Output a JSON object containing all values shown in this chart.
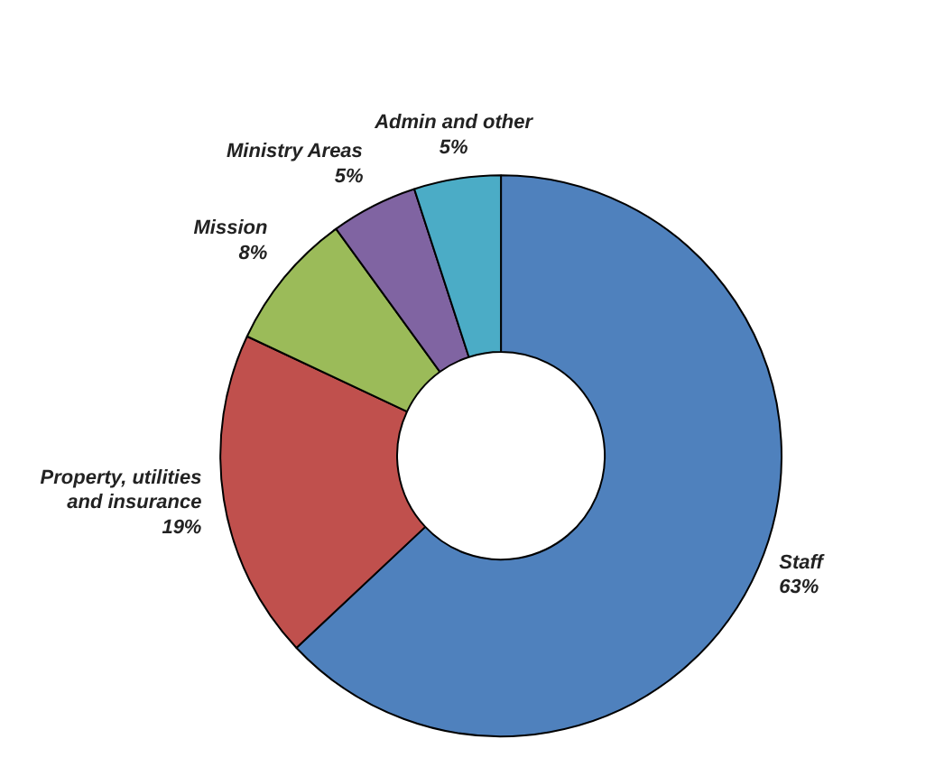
{
  "chart_data": {
    "type": "donut",
    "categories": [
      "Staff",
      "Property, utilities and insurance",
      "Mission",
      "Ministry Areas",
      "Admin and other"
    ],
    "values": [
      63,
      19,
      8,
      5,
      5
    ],
    "value_labels": [
      "63%",
      "19%",
      "8%",
      "5%",
      "5%"
    ],
    "colors": [
      "#4f81bd",
      "#c0504d",
      "#9bbb59",
      "#8064a2",
      "#4bacc6"
    ]
  }
}
